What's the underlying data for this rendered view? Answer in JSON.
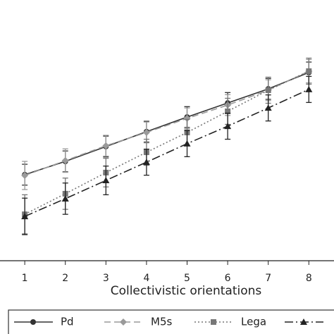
{
  "chart_data": {
    "type": "line",
    "x_label": "Collectivistic orientations",
    "x": [
      1,
      2,
      3,
      4,
      5,
      6,
      7,
      8
    ],
    "xlim": [
      0.39,
      8.62
    ],
    "xticks": [
      1,
      2,
      3,
      4,
      5,
      6,
      7,
      8
    ],
    "ylim": [
      0,
      100
    ],
    "series": [
      {
        "name": "Pd",
        "color": "#333333",
        "line_style": "solid",
        "marker": "circle",
        "values": [
          33.0,
          38.1,
          43.8,
          49.5,
          55.1,
          60.5,
          65.9,
          72.2
        ],
        "errors": [
          4,
          4,
          4,
          4,
          4,
          4,
          4,
          4
        ]
      },
      {
        "name": "M5s",
        "color": "#9a9a9a",
        "line_style": "dashed",
        "marker": "diamond",
        "values": [
          32.7,
          38.4,
          44.1,
          49.2,
          54.6,
          59.7,
          65.4,
          72.7
        ],
        "errors": [
          5.4,
          4.5,
          4,
          4,
          4,
          4,
          4,
          4.5
        ]
      },
      {
        "name": "Lega",
        "color": "#777777",
        "line_style": "dotted",
        "marker": "square",
        "values": [
          17.8,
          25.7,
          33.8,
          41.6,
          49.2,
          57.3,
          65.4,
          72.7
        ],
        "errors": [
          7.5,
          6,
          5.5,
          5,
          5,
          5,
          5,
          5
        ]
      },
      {
        "color": "#222222",
        "line_style": "dashdot",
        "marker": "triangle",
        "values": [
          17.0,
          23.8,
          30.8,
          37.8,
          44.9,
          51.6,
          58.6,
          65.7
        ],
        "errors": [
          7,
          6,
          5.5,
          5,
          5,
          5,
          5,
          5
        ]
      }
    ],
    "legend": "bottom"
  }
}
